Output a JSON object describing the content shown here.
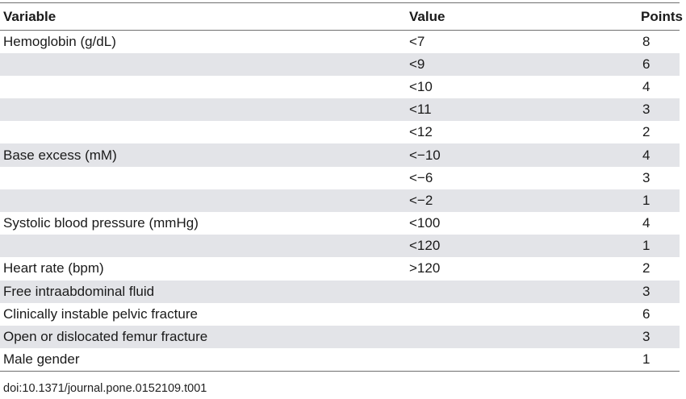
{
  "table": {
    "headers": [
      "Variable",
      "Value",
      "Points"
    ],
    "rows": [
      {
        "variable": "Hemoglobin (g/dL)",
        "value": "<7",
        "points": "8"
      },
      {
        "variable": "",
        "value": "<9",
        "points": "6"
      },
      {
        "variable": "",
        "value": "<10",
        "points": "4"
      },
      {
        "variable": "",
        "value": "<11",
        "points": "3"
      },
      {
        "variable": "",
        "value": "<12",
        "points": "2"
      },
      {
        "variable": "Base excess (mM)",
        "value": "<−10",
        "points": "4"
      },
      {
        "variable": "",
        "value": "<−6",
        "points": "3"
      },
      {
        "variable": "",
        "value": "<−2",
        "points": "1"
      },
      {
        "variable": "Systolic blood pressure (mmHg)",
        "value": "<100",
        "points": "4"
      },
      {
        "variable": "",
        "value": "<120",
        "points": "1"
      },
      {
        "variable": "Heart rate (bpm)",
        "value": ">120",
        "points": "2"
      },
      {
        "variable": "Free intraabdominal fluid",
        "value": "",
        "points": "3"
      },
      {
        "variable": "Clinically instable pelvic fracture",
        "value": "",
        "points": "6"
      },
      {
        "variable": "Open or dislocated femur fracture",
        "value": "",
        "points": "3"
      },
      {
        "variable": "Male gender",
        "value": "",
        "points": "1"
      }
    ]
  },
  "footer": {
    "doi": "doi:10.1371/journal.pone.0152109.t001"
  },
  "colors": {
    "stripe": "#e3e4e8",
    "rule": "#6f6f6f"
  }
}
